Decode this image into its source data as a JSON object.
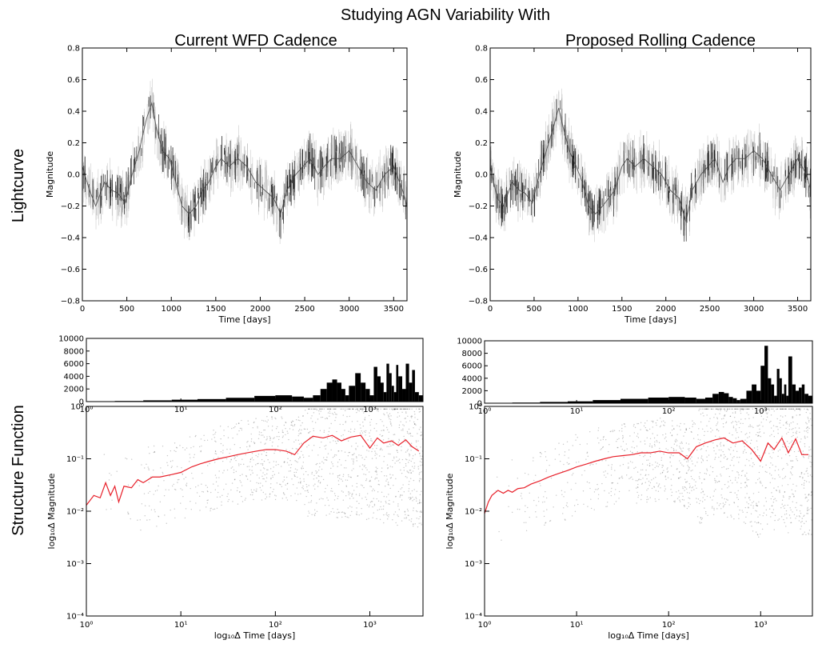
{
  "figure_title": "Studying AGN Variability With",
  "column_titles": [
    "Current WFD Cadence",
    "Proposed Rolling Cadence"
  ],
  "row_labels": [
    "Lightcurve",
    "Structure Function"
  ],
  "colors": {
    "data": "#000000",
    "structure_function": "#e8202a",
    "errorbar": "#6e6e6e"
  },
  "chart_data": [
    {
      "name": "Current WFD Cadence — Lightcurve",
      "type": "line",
      "xlabel": "Time [days]",
      "ylabel": "Magnitude",
      "xlim": [
        0,
        3650
      ],
      "ylim": [
        -0.8,
        0.8
      ],
      "xticks": [
        0,
        500,
        1000,
        1500,
        2000,
        2500,
        3000,
        3500
      ],
      "yticks": [
        -0.8,
        -0.6,
        -0.4,
        -0.2,
        0.0,
        0.2,
        0.4,
        0.6,
        0.8
      ],
      "ytick_labels": [
        "−0.8",
        "−0.6",
        "−0.4",
        "−0.2",
        "0.0",
        "0.2",
        "0.4",
        "0.6",
        "0.8"
      ],
      "series": [
        {
          "x": [
            0,
            80,
            150,
            250,
            330,
            400,
            480,
            560,
            640,
            720,
            780,
            830,
            900,
            980,
            1050,
            1120,
            1200,
            1280,
            1350,
            1420,
            1500,
            1560,
            1650,
            1750,
            1850,
            1950,
            2050,
            2150,
            2230,
            2300,
            2400,
            2480,
            2560,
            2650,
            2720,
            2800,
            2900,
            3000,
            3100,
            3200,
            3300,
            3400,
            3500,
            3600,
            3650
          ],
          "y": [
            0.05,
            -0.1,
            -0.2,
            -0.05,
            -0.1,
            -0.12,
            -0.18,
            0.0,
            0.15,
            0.35,
            0.45,
            0.3,
            0.15,
            0.1,
            -0.05,
            -0.2,
            -0.25,
            -0.2,
            -0.1,
            -0.05,
            0.05,
            0.1,
            0.05,
            0.1,
            0.05,
            -0.05,
            -0.1,
            -0.15,
            -0.25,
            -0.1,
            0.0,
            0.05,
            0.1,
            0.0,
            0.05,
            0.1,
            0.1,
            0.15,
            0.05,
            -0.05,
            -0.1,
            0.0,
            0.05,
            -0.1,
            -0.2
          ]
        }
      ]
    },
    {
      "name": "Proposed Rolling Cadence — Lightcurve",
      "type": "line",
      "xlabel": "Time [days]",
      "ylabel": "Magnitude",
      "xlim": [
        0,
        3650
      ],
      "ylim": [
        -0.8,
        0.8
      ],
      "xticks": [
        0,
        500,
        1000,
        1500,
        2000,
        2500,
        3000,
        3500
      ],
      "yticks": [
        -0.8,
        -0.6,
        -0.4,
        -0.2,
        0.0,
        0.2,
        0.4,
        0.6,
        0.8
      ],
      "ytick_labels": [
        "−0.8",
        "−0.6",
        "−0.4",
        "−0.2",
        "0.0",
        "0.2",
        "0.4",
        "0.6",
        "0.8"
      ],
      "series": [
        {
          "x": [
            0,
            80,
            150,
            250,
            330,
            400,
            480,
            560,
            640,
            720,
            780,
            830,
            900,
            980,
            1050,
            1120,
            1200,
            1280,
            1350,
            1420,
            1500,
            1560,
            1650,
            1750,
            1850,
            1950,
            2050,
            2150,
            2230,
            2300,
            2400,
            2480,
            2560,
            2650,
            2720,
            2800,
            2900,
            3000,
            3100,
            3200,
            3300,
            3400,
            3500,
            3600,
            3650
          ],
          "y": [
            0.05,
            -0.15,
            -0.2,
            -0.05,
            -0.1,
            -0.12,
            -0.18,
            0.0,
            0.15,
            0.3,
            0.42,
            0.3,
            0.15,
            0.05,
            -0.05,
            -0.2,
            -0.25,
            -0.2,
            -0.15,
            -0.1,
            0.05,
            0.1,
            0.05,
            0.1,
            0.05,
            0.0,
            -0.1,
            -0.15,
            -0.3,
            -0.1,
            0.0,
            0.05,
            0.1,
            -0.05,
            0.05,
            0.1,
            0.1,
            0.15,
            0.1,
            0.0,
            -0.1,
            0.0,
            0.1,
            0.0,
            -0.1
          ]
        }
      ]
    },
    {
      "name": "Current WFD Cadence — Structure Function",
      "type": "line",
      "xlabel": "log₁₀Δ Time [days]",
      "ylabel": "log₁₀Δ Magnitude",
      "xscale": "log",
      "yscale": "log",
      "xlim": [
        1,
        3650
      ],
      "ylim": [
        0.0001,
        1
      ],
      "xticks": [
        1,
        10,
        100,
        1000
      ],
      "xtick_labels": [
        "10⁰",
        "10¹",
        "10²",
        "10³"
      ],
      "yticks": [
        0.0001,
        0.001,
        0.01,
        0.1,
        1
      ],
      "ytick_labels": [
        "10⁻⁴",
        "10⁻³",
        "10⁻²",
        "10⁻¹",
        "10⁰"
      ],
      "series": [
        {
          "x": [
            1.0,
            1.2,
            1.4,
            1.6,
            1.8,
            2.0,
            2.2,
            2.5,
            3.0,
            3.5,
            4.0,
            5.0,
            6.0,
            8.0,
            10,
            13,
            16,
            20,
            25,
            32,
            40,
            50,
            63,
            80,
            100,
            130,
            160,
            200,
            250,
            320,
            400,
            500,
            630,
            800,
            1000,
            1200,
            1400,
            1700,
            2000,
            2400,
            2800,
            3300
          ],
          "y": [
            0.013,
            0.02,
            0.018,
            0.035,
            0.02,
            0.03,
            0.015,
            0.03,
            0.028,
            0.04,
            0.035,
            0.045,
            0.045,
            0.05,
            0.055,
            0.07,
            0.08,
            0.09,
            0.1,
            0.11,
            0.12,
            0.13,
            0.14,
            0.15,
            0.15,
            0.14,
            0.12,
            0.2,
            0.27,
            0.25,
            0.28,
            0.22,
            0.26,
            0.28,
            0.16,
            0.25,
            0.2,
            0.22,
            0.18,
            0.23,
            0.17,
            0.14
          ]
        }
      ]
    },
    {
      "name": "Proposed Rolling Cadence — Structure Function",
      "type": "line",
      "xlabel": "log₁₀Δ Time [days]",
      "ylabel": "log₁₀Δ Magnitude",
      "xscale": "log",
      "yscale": "log",
      "xlim": [
        1,
        3650
      ],
      "ylim": [
        0.0001,
        1
      ],
      "xticks": [
        1,
        10,
        100,
        1000
      ],
      "xtick_labels": [
        "10⁰",
        "10¹",
        "10²",
        "10³"
      ],
      "yticks": [
        0.0001,
        0.001,
        0.01,
        0.1,
        1
      ],
      "ytick_labels": [
        "10⁻⁴",
        "10⁻³",
        "10⁻²",
        "10⁻¹",
        "10⁰"
      ],
      "series": [
        {
          "x": [
            1.0,
            1.1,
            1.2,
            1.4,
            1.6,
            1.8,
            2.0,
            2.3,
            2.7,
            3.2,
            4.0,
            5.0,
            6.3,
            8.0,
            10,
            13,
            16,
            20,
            25,
            32,
            40,
            50,
            63,
            80,
            100,
            130,
            160,
            200,
            250,
            320,
            400,
            500,
            630,
            800,
            1000,
            1200,
            1400,
            1700,
            2000,
            2400,
            2800,
            3300
          ],
          "y": [
            0.009,
            0.015,
            0.02,
            0.025,
            0.022,
            0.025,
            0.023,
            0.027,
            0.028,
            0.033,
            0.038,
            0.045,
            0.052,
            0.06,
            0.07,
            0.08,
            0.09,
            0.1,
            0.11,
            0.115,
            0.12,
            0.13,
            0.13,
            0.14,
            0.13,
            0.13,
            0.1,
            0.17,
            0.2,
            0.23,
            0.25,
            0.2,
            0.22,
            0.15,
            0.09,
            0.2,
            0.15,
            0.25,
            0.13,
            0.24,
            0.12,
            0.12
          ]
        }
      ]
    },
    {
      "name": "Current WFD Cadence — Histogram",
      "type": "bar",
      "xscale": "log",
      "xlim": [
        1,
        3650
      ],
      "ylim": [
        0,
        10000
      ],
      "yticks": [
        0,
        2000,
        4000,
        6000,
        8000,
        10000
      ],
      "xtick_labels": [
        "10⁰",
        "10¹",
        "10²",
        "10³"
      ],
      "x": [
        1.0,
        2.0,
        4.0,
        8.0,
        15,
        30,
        60,
        100,
        150,
        200,
        250,
        300,
        350,
        400,
        450,
        500,
        550,
        600,
        700,
        800,
        900,
        1000,
        1100,
        1200,
        1300,
        1400,
        1500,
        1600,
        1700,
        1800,
        1900,
        2000,
        2200,
        2400,
        2600,
        2800,
        3000,
        3300
      ],
      "values": [
        50,
        100,
        200,
        300,
        400,
        600,
        900,
        1000,
        800,
        600,
        1000,
        2000,
        3000,
        3500,
        3000,
        2000,
        1000,
        2500,
        4500,
        3000,
        2000,
        1000,
        5500,
        4000,
        3000,
        1500,
        6000,
        4500,
        2500,
        1500,
        5800,
        4000,
        2000,
        6000,
        3000,
        5000,
        1500,
        1000
      ]
    },
    {
      "name": "Proposed Rolling Cadence — Histogram",
      "type": "bar",
      "xscale": "log",
      "xlim": [
        1,
        3650
      ],
      "ylim": [
        0,
        10000
      ],
      "yticks": [
        0,
        2000,
        4000,
        6000,
        8000,
        10000
      ],
      "xtick_labels": [
        "10⁰",
        "10¹",
        "10²",
        "10³"
      ],
      "x": [
        1.0,
        2.0,
        4.0,
        8.0,
        15,
        30,
        60,
        100,
        150,
        200,
        250,
        300,
        350,
        400,
        450,
        500,
        550,
        600,
        700,
        800,
        900,
        1000,
        1100,
        1200,
        1300,
        1400,
        1500,
        1600,
        1700,
        1800,
        1900,
        2000,
        2200,
        2400,
        2600,
        2800,
        3000,
        3300
      ],
      "values": [
        50,
        100,
        200,
        300,
        500,
        700,
        900,
        1000,
        900,
        700,
        900,
        1500,
        1800,
        1600,
        1000,
        800,
        500,
        700,
        2000,
        3000,
        2000,
        6000,
        9200,
        4000,
        3000,
        1200,
        5500,
        4000,
        1500,
        3000,
        1200,
        7500,
        3000,
        2000,
        2500,
        3000,
        1500,
        1200
      ]
    }
  ]
}
